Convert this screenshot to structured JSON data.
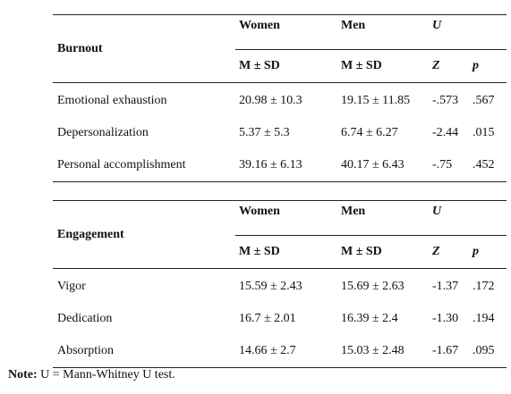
{
  "tables": [
    {
      "section": "Burnout",
      "head": {
        "women": "Women",
        "men": "Men",
        "u": "U",
        "women_stat": "M ± SD",
        "men_stat": "M ± SD",
        "z": "Z",
        "p": "p"
      },
      "rows": [
        {
          "label": "Emotional exhaustion",
          "women": "20.98 ± 10.3",
          "men": "19.15 ± 11.85",
          "z": "-.573",
          "p": ".567"
        },
        {
          "label": "Depersonalization",
          "women": "5.37 ± 5.3",
          "men": "6.74 ± 6.27",
          "z": "-2.44",
          "p": ".015"
        },
        {
          "label": "Personal accomplishment",
          "women": "39.16 ± 6.13",
          "men": "40.17 ± 6.43",
          "z": "-.75",
          "p": ".452"
        }
      ]
    },
    {
      "section": "Engagement",
      "head": {
        "women": "Women",
        "men": "Men",
        "u": "U",
        "women_stat": "M ± SD",
        "men_stat": "M ± SD",
        "z": "Z",
        "p": "p"
      },
      "rows": [
        {
          "label": "Vigor",
          "women": "15.59 ± 2.43",
          "men": "15.69 ± 2.63",
          "z": "-1.37",
          "p": ".172"
        },
        {
          "label": "Dedication",
          "women": "16.7 ± 2.01",
          "men": "16.39 ± 2.4",
          "z": "-1.30",
          "p": ".194"
        },
        {
          "label": "Absorption",
          "women": "14.66 ± 2.7",
          "men": "15.03 ± 2.48",
          "z": "-1.67",
          "p": ".095"
        }
      ]
    }
  ],
  "note": {
    "label": "Note:",
    "text": " U = Mann-Whitney U test."
  }
}
